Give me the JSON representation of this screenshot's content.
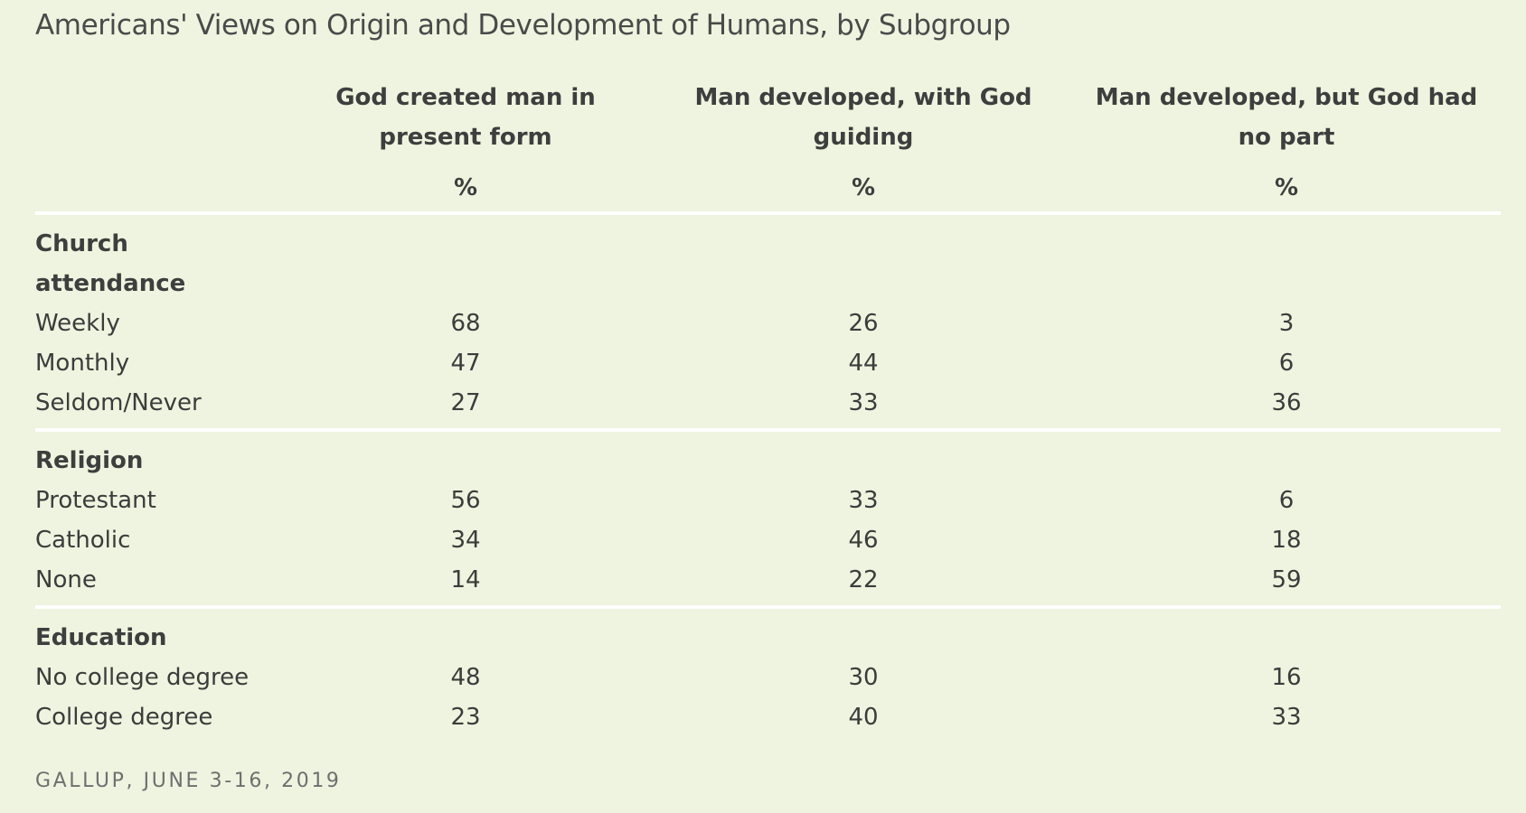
{
  "title": "Americans' Views on Origin and Development of Humans, by Subgroup",
  "source": "GALLUP, JUNE 3-16, 2019",
  "chart_data": {
    "type": "table",
    "title": "Americans' Views on Origin and Development of Humans, by Subgroup",
    "columns": [
      {
        "label": "God created man in present form",
        "unit": "%"
      },
      {
        "label": "Man developed, with God guiding",
        "unit": "%"
      },
      {
        "label": "Man developed, but God had no part",
        "unit": "%"
      }
    ],
    "groups": [
      {
        "label": "Church attendance",
        "rows": [
          {
            "label": "Weekly",
            "values": [
              "68",
              "26",
              "3"
            ]
          },
          {
            "label": "Monthly",
            "values": [
              "47",
              "44",
              "6"
            ]
          },
          {
            "label": "Seldom/Never",
            "values": [
              "27",
              "33",
              "36"
            ]
          }
        ]
      },
      {
        "label": "Religion",
        "rows": [
          {
            "label": "Protestant",
            "values": [
              "56",
              "33",
              "6"
            ]
          },
          {
            "label": "Catholic",
            "values": [
              "34",
              "46",
              "18"
            ]
          },
          {
            "label": "None",
            "values": [
              "14",
              "22",
              "59"
            ]
          }
        ]
      },
      {
        "label": "Education",
        "rows": [
          {
            "label": "No college degree",
            "values": [
              "48",
              "30",
              "16"
            ]
          },
          {
            "label": "College degree",
            "values": [
              "23",
              "40",
              "33"
            ]
          }
        ]
      }
    ]
  }
}
